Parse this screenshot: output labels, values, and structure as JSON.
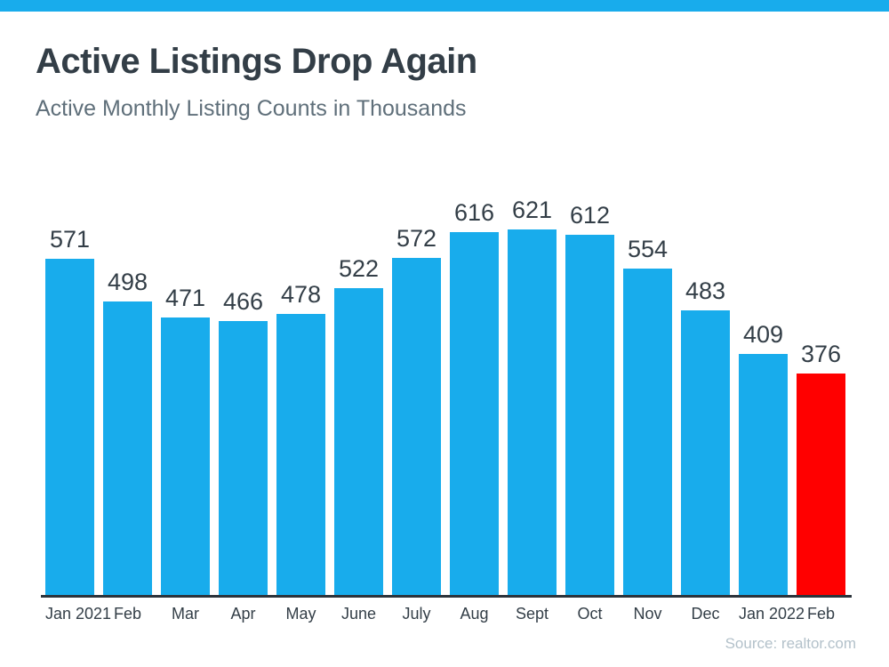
{
  "page": {
    "title": "Active Listings Drop Again",
    "subtitle": "Active Monthly Listing Counts in Thousands",
    "source": "Source: realtor.com"
  },
  "colors": {
    "accent_blue": "#18ACEC",
    "highlight_red": "#FF0000",
    "title_dark": "#333E47",
    "subtitle_gray": "#5F6F7A",
    "source_gray": "#B3C1CA",
    "axis_dark": "#2B333B"
  },
  "chart_data": {
    "type": "bar",
    "title": "Active Listings Drop Again",
    "subtitle": "Active Monthly Listing Counts in Thousands",
    "categories": [
      "Jan 2021",
      "Feb",
      "Mar",
      "Apr",
      "May",
      "June",
      "July",
      "Aug",
      "Sept",
      "Oct",
      "Nov",
      "Dec",
      "Jan 2022",
      "Feb"
    ],
    "values": [
      571,
      498,
      471,
      466,
      478,
      522,
      572,
      616,
      621,
      612,
      554,
      483,
      409,
      376
    ],
    "highlight_index": 13,
    "data_labels": true,
    "xlabel": "",
    "ylabel": "",
    "ylim": [
      0,
      621
    ],
    "grid": false,
    "legend": false,
    "source": "Source: realtor.com"
  }
}
